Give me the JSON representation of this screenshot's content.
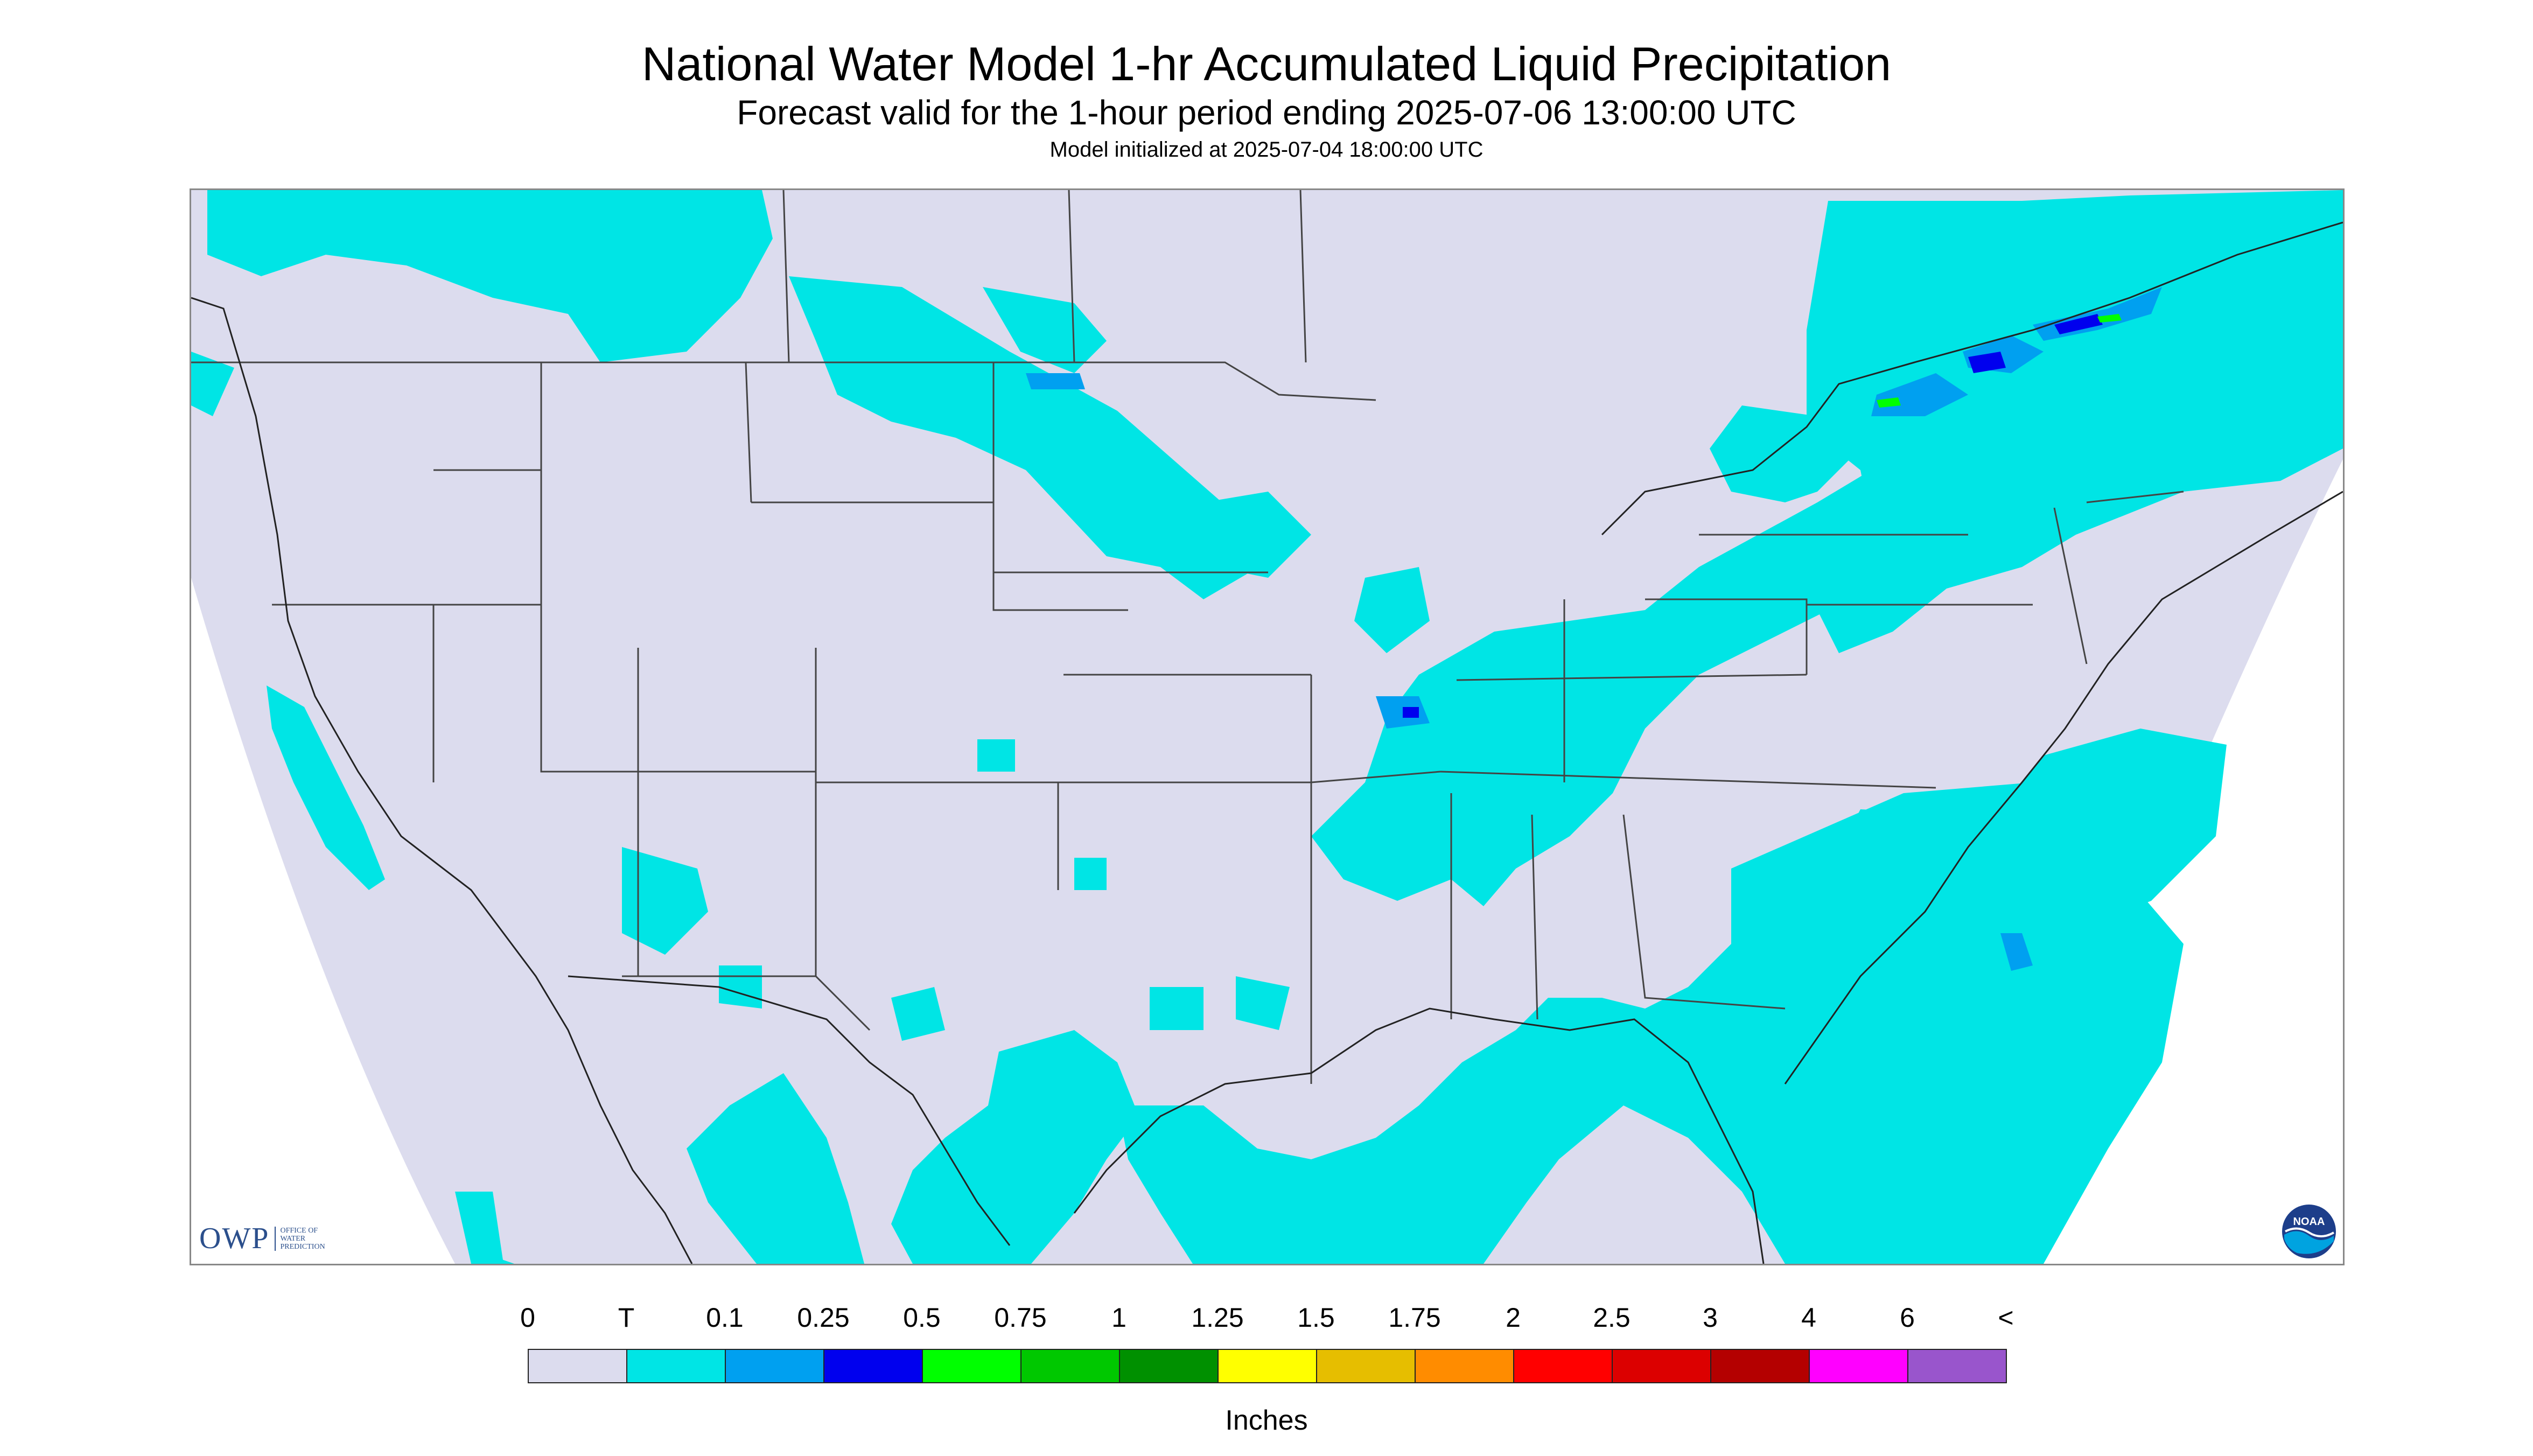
{
  "title": "National Water Model 1-hr Accumulated Liquid Precipitation",
  "subtitle": "Forecast valid for the 1-hour period ending 2025-07-06 13:00:00 UTC",
  "init_line": "Model initialized at 2025-07-04 18:00:00 UTC",
  "logos": {
    "owp_main": "OWP",
    "owp_sub": [
      "OFFICE OF",
      "WATER",
      "PREDICTION"
    ],
    "noaa": "NOAA"
  },
  "colors": {
    "outside_domain": "#ffffff",
    "no_precip": "#dcdcee",
    "boundaries": "#444444"
  },
  "legend": {
    "units": "Inches",
    "tick_labels": [
      "0",
      "T",
      "0.1",
      "0.25",
      "0.5",
      "0.75",
      "1",
      "1.25",
      "1.5",
      "1.75",
      "2",
      "2.5",
      "3",
      "4",
      "6",
      "<"
    ],
    "colors": [
      "#dcdcee",
      "#00e5e5",
      "#00a0f0",
      "#0000ee",
      "#00ff00",
      "#00c800",
      "#009000",
      "#ffff00",
      "#e6be00",
      "#ff8c00",
      "#ff0000",
      "#dc0000",
      "#b40000",
      "#ff00ff",
      "#9955cc"
    ]
  }
}
